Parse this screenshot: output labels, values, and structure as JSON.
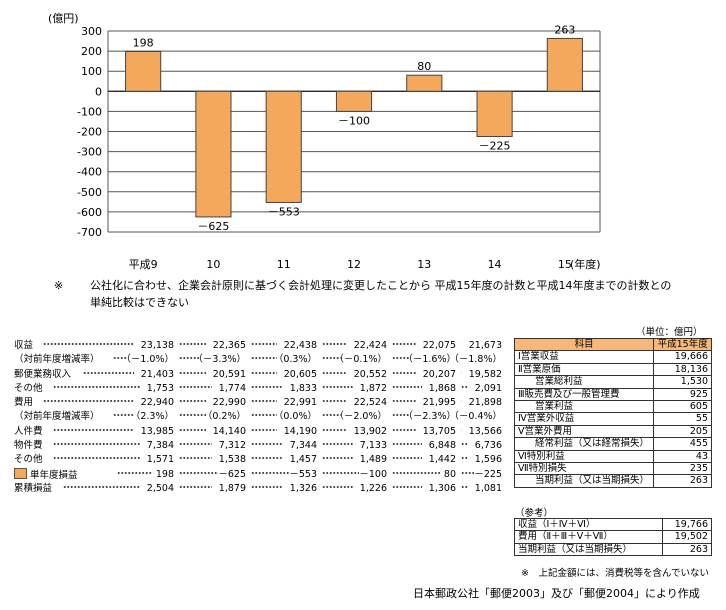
{
  "chart_data": {
    "type": "bar",
    "unit_label": "(億円)",
    "categories": [
      "平成9",
      "10",
      "11",
      "12",
      "13",
      "14",
      "15"
    ],
    "x_unit": "(年度)",
    "values": [
      198,
      -625,
      -553,
      -100,
      80,
      -225,
      263
    ],
    "value_labels": [
      "198",
      "－625",
      "－553",
      "－100",
      "80",
      "－225",
      "263"
    ],
    "ylim": [
      -700,
      300
    ],
    "yticks": [
      300,
      200,
      100,
      0,
      -100,
      -200,
      -300,
      -400,
      -500,
      -600,
      -700
    ],
    "grid": true,
    "bar_color": "#f4a85c"
  },
  "note": {
    "mark": "※",
    "line1": "公社化に合わせ、企業会計原則に基づく会計処理に変更したことから 平成15年度の計数と平成14年度までの計数との",
    "line2": "単純比較はできない"
  },
  "summary_table": {
    "rows": [
      {
        "label": "収益",
        "values": [
          "23,138",
          "22,365",
          "22,438",
          "22,424",
          "22,075",
          "21,673"
        ]
      },
      {
        "label": "（対前年度増減率）",
        "values": [
          "（－1.0%）",
          "（－3.3%）",
          "（0.3%）",
          "（－0.1%）",
          "（－1.6%）",
          "（－1.8%）"
        ]
      },
      {
        "label": "郵便業務収入",
        "values": [
          "21,403",
          "20,591",
          "20,605",
          "20,552",
          "20,207",
          "19,582"
        ]
      },
      {
        "label": "その他",
        "values": [
          "1,753",
          "1,774",
          "1,833",
          "1,872",
          "1,868",
          "2,091"
        ]
      },
      {
        "label": "費用",
        "values": [
          "22,940",
          "22,990",
          "22,991",
          "22,524",
          "21,995",
          "21,898"
        ]
      },
      {
        "label": "（対前年度増減率）",
        "values": [
          "（2.3%）",
          "（0.2%）",
          "（0.0%）",
          "（－2.0%）",
          "（－2.3%）",
          "（－0.4%）"
        ]
      },
      {
        "label": "人件費",
        "values": [
          "13,985",
          "14,140",
          "14,190",
          "13,902",
          "13,705",
          "13,566"
        ]
      },
      {
        "label": "物件費",
        "values": [
          "7,384",
          "7,312",
          "7,344",
          "7,133",
          "6,848",
          "6,736"
        ]
      },
      {
        "label": "その他",
        "values": [
          "1,571",
          "1,538",
          "1,457",
          "1,489",
          "1,442",
          "1,596"
        ]
      },
      {
        "label": "単年度損益",
        "values": [
          "198",
          "－625",
          "－553",
          "－100",
          "80",
          "－225"
        ],
        "legend": true
      },
      {
        "label": "累積損益",
        "values": [
          "2,504",
          "1,879",
          "1,326",
          "1,226",
          "1,306",
          "1,081"
        ]
      }
    ]
  },
  "right_table": {
    "unit": "（単位：億円）",
    "header": [
      "科目",
      "平成15年度"
    ],
    "rows": [
      {
        "label": "Ⅰ営業収益",
        "value": "19,666"
      },
      {
        "label": "Ⅱ営業原価",
        "value": "18,136"
      },
      {
        "label": "営業総利益",
        "value": "1,530"
      },
      {
        "label": "Ⅲ販売費及び一般管理費",
        "value": "925"
      },
      {
        "label": "営業利益",
        "value": "605"
      },
      {
        "label": "Ⅳ営業外収益",
        "value": "55"
      },
      {
        "label": "Ⅴ営業外費用",
        "value": "205"
      },
      {
        "label": "経常利益（又は経常損失）",
        "value": "455"
      },
      {
        "label": "Ⅵ特別利益",
        "value": "43"
      },
      {
        "label": "Ⅶ特別損失",
        "value": "235"
      },
      {
        "label": "当期利益（又は当期損失）",
        "value": "263"
      }
    ]
  },
  "reference": {
    "title": "（参考）",
    "rows": [
      {
        "label": "収益（Ⅰ＋Ⅳ＋Ⅵ）",
        "value": "19,766"
      },
      {
        "label": "費用（Ⅱ＋Ⅲ＋Ⅴ＋Ⅶ）",
        "value": "19,502"
      },
      {
        "label": "当期利益（又は当期損失）",
        "value": "263"
      }
    ],
    "footnote": "※　上記金額には、消費税等を含んでいない"
  },
  "source": "日本郵政公社「郵便2003」及び「郵便2004」により作成"
}
